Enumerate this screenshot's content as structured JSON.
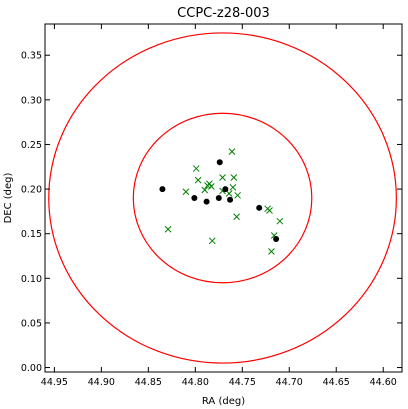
{
  "chart_data": {
    "type": "scatter",
    "title": "CCPC-z28-003",
    "xlabel": "RA (deg)",
    "ylabel": "DEC (deg)",
    "xlim": [
      44.96,
      44.58
    ],
    "ylim": [
      -0.005,
      0.385
    ],
    "x_inverted": true,
    "grid": false,
    "x_ticks": [
      44.95,
      44.9,
      44.85,
      44.8,
      44.75,
      44.7,
      44.65,
      44.6
    ],
    "x_tick_labels": [
      "44.95",
      "44.90",
      "44.85",
      "44.80",
      "44.75",
      "44.70",
      "44.65",
      "44.60"
    ],
    "y_ticks": [
      0.0,
      0.05,
      0.1,
      0.15,
      0.2,
      0.25,
      0.3,
      0.35
    ],
    "y_tick_labels": [
      "0.00",
      "0.05",
      "0.10",
      "0.15",
      "0.20",
      "0.25",
      "0.30",
      "0.35"
    ],
    "colors": {
      "circles": "#ff0000",
      "dots": "#000000",
      "crosses": "#008000"
    },
    "circles": [
      {
        "center": [
          44.771,
          0.19
        ],
        "radius_deg": 0.095
      },
      {
        "center": [
          44.771,
          0.19
        ],
        "radius_deg": 0.185
      }
    ],
    "series": [
      {
        "marker": "dot",
        "points": [
          [
            44.835,
            0.2
          ],
          [
            44.801,
            0.19
          ],
          [
            44.788,
            0.186
          ],
          [
            44.775,
            0.19
          ],
          [
            44.774,
            0.23
          ],
          [
            44.768,
            0.2
          ],
          [
            44.763,
            0.188
          ],
          [
            44.732,
            0.179
          ],
          [
            44.714,
            0.144
          ]
        ]
      },
      {
        "marker": "cross",
        "points": [
          [
            44.829,
            0.155
          ],
          [
            44.81,
            0.197
          ],
          [
            44.799,
            0.223
          ],
          [
            44.797,
            0.21
          ],
          [
            44.79,
            0.199
          ],
          [
            44.787,
            0.204
          ],
          [
            44.785,
            0.206
          ],
          [
            44.783,
            0.203
          ],
          [
            44.782,
            0.142
          ],
          [
            44.771,
            0.213
          ],
          [
            44.771,
            0.198
          ],
          [
            44.764,
            0.195
          ],
          [
            44.761,
            0.242
          ],
          [
            44.76,
            0.202
          ],
          [
            44.759,
            0.213
          ],
          [
            44.756,
            0.169
          ],
          [
            44.755,
            0.193
          ],
          [
            44.723,
            0.178
          ],
          [
            44.721,
            0.176
          ],
          [
            44.719,
            0.13
          ],
          [
            44.716,
            0.148
          ],
          [
            44.71,
            0.164
          ]
        ]
      }
    ]
  }
}
